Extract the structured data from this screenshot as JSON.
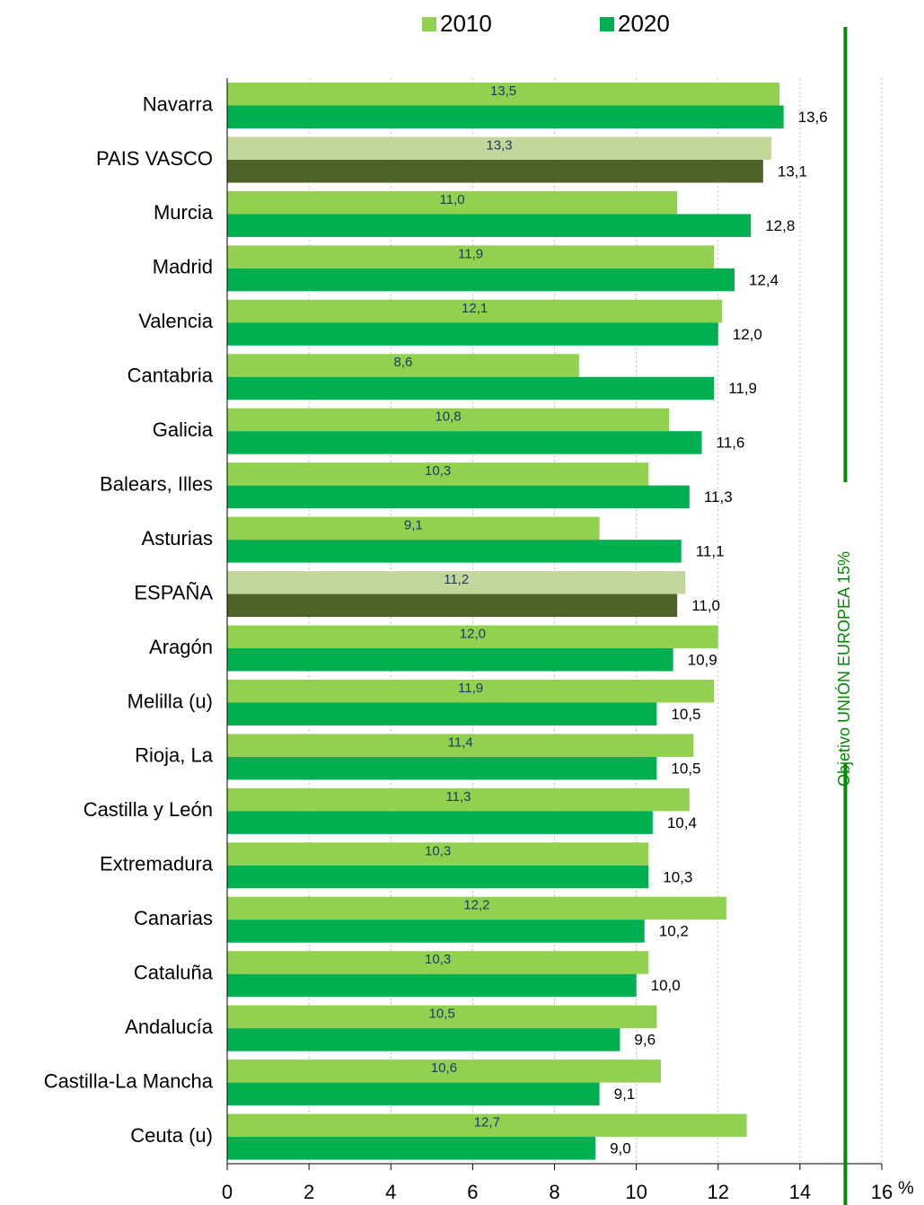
{
  "chart_data": {
    "type": "barh",
    "categories": [
      "Navarra",
      "PAIS VASCO",
      "Murcia",
      "Madrid",
      "Valencia",
      "Cantabria",
      "Galicia",
      "Balears, Illes",
      "Asturias",
      "ESPAÑA",
      "Aragón",
      "Melilla (u)",
      "Rioja, La",
      "Castilla y León",
      "Extremadura",
      "Canarias",
      "Cataluña",
      "Andalucía",
      "Castilla-La Mancha",
      "Ceuta (u)"
    ],
    "series": [
      {
        "name": "2010",
        "color": "#92d050",
        "colors": [
          "#92d050",
          "#c4d79b",
          "#92d050",
          "#92d050",
          "#92d050",
          "#92d050",
          "#92d050",
          "#92d050",
          "#92d050",
          "#c4d79b",
          "#92d050",
          "#92d050",
          "#92d050",
          "#92d050",
          "#92d050",
          "#92d050",
          "#92d050",
          "#92d050",
          "#92d050",
          "#92d050"
        ],
        "values": [
          13.5,
          13.3,
          11.0,
          11.9,
          12.1,
          8.6,
          10.8,
          10.3,
          9.1,
          11.2,
          12.0,
          11.9,
          11.4,
          11.3,
          10.3,
          12.2,
          10.3,
          10.5,
          10.6,
          12.7
        ],
        "value_labels": [
          "13,5",
          "13,3",
          "11,0",
          "11,9",
          "12,1",
          "8,6",
          "10,8",
          "10,3",
          "9,1",
          "11,2",
          "12,0",
          "11,9",
          "11,4",
          "11,3",
          "10,3",
          "12,2",
          "10,3",
          "10,5",
          "10,6",
          "12,7"
        ]
      },
      {
        "name": "2020",
        "color": "#00b050",
        "colors": [
          "#00b050",
          "#4f6228",
          "#00b050",
          "#00b050",
          "#00b050",
          "#00b050",
          "#00b050",
          "#00b050",
          "#00b050",
          "#4f6228",
          "#00b050",
          "#00b050",
          "#00b050",
          "#00b050",
          "#00b050",
          "#00b050",
          "#00b050",
          "#00b050",
          "#00b050",
          "#00b050"
        ],
        "values": [
          13.6,
          13.1,
          12.8,
          12.4,
          12.0,
          11.9,
          11.6,
          11.3,
          11.1,
          11.0,
          10.9,
          10.5,
          10.5,
          10.4,
          10.3,
          10.2,
          10.0,
          9.6,
          9.1,
          9.0
        ],
        "value_labels": [
          "13,6",
          "13,1",
          "12,8",
          "12,4",
          "12,0",
          "11,9",
          "11,6",
          "11,3",
          "11,1",
          "11,0",
          "10,9",
          "10,5",
          "10,5",
          "10,4",
          "10,3",
          "10,2",
          "10,0",
          "9,6",
          "9,1",
          "9,0"
        ]
      }
    ],
    "x_label": "%",
    "xlim": [
      0,
      16
    ],
    "xticks": [
      0,
      2,
      4,
      6,
      8,
      10,
      12,
      14,
      16
    ],
    "grid": true,
    "legend": "top",
    "target": {
      "value": 15,
      "label": "Objetivo UNIÓN EUROPEA 15%",
      "color": "#008a00"
    }
  }
}
